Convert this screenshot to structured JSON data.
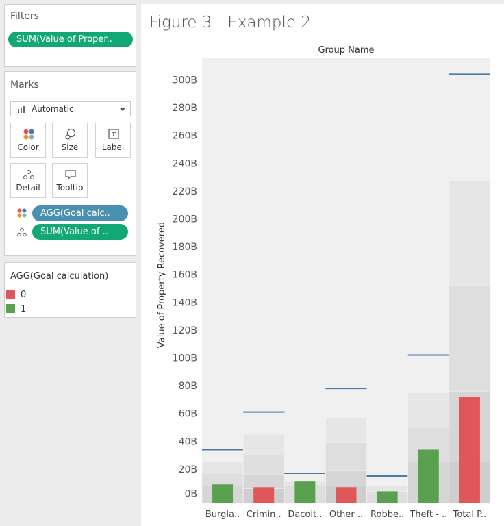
{
  "filters": {
    "title": "Filters",
    "pill": "SUM(Value of Proper.."
  },
  "marks": {
    "title": "Marks",
    "mark_type": "Automatic",
    "buttons": [
      "Color",
      "Size",
      "Label",
      "Detail",
      "Tooltip"
    ],
    "pills": [
      {
        "text": "AGG(Goal calc..",
        "icon": "color-dots-icon"
      },
      {
        "text": "SUM(Value of ..",
        "icon": "detail-dots-icon"
      }
    ]
  },
  "legend": {
    "title": "AGG(Goal calculation)",
    "items": [
      {
        "label": "0",
        "color": "#e05759"
      },
      {
        "label": "1",
        "color": "#59a14f"
      }
    ]
  },
  "chart_data": {
    "type": "bar",
    "title": "Figure 3 - Example 2",
    "column_header": "Group Name",
    "ylabel": "Value of Property Recovered",
    "ylim": [
      0,
      310
    ],
    "y_ticks": [
      "0B",
      "20B",
      "40B",
      "60B",
      "80B",
      "100B",
      "120B",
      "140B",
      "160B",
      "180B",
      "200B",
      "220B",
      "240B",
      "260B",
      "280B",
      "300B"
    ],
    "y_tick_values": [
      0,
      20,
      40,
      60,
      80,
      100,
      120,
      140,
      160,
      180,
      200,
      220,
      240,
      260,
      280,
      300
    ],
    "categories": [
      "Burgla..",
      "Crimin..",
      "Dacoit..",
      "Other ..",
      "Robbe..",
      "Theft - ..",
      "Total P.."
    ],
    "bands": [
      [
        25,
        17,
        8
      ],
      [
        45,
        30,
        16,
        6
      ],
      [
        11,
        8
      ],
      [
        57,
        39,
        19,
        8
      ],
      [
        8,
        4
      ],
      [
        75,
        50,
        25
      ],
      [
        227,
        152,
        76,
        25
      ]
    ],
    "values": [
      9,
      7,
      11,
      7,
      4,
      34,
      72
    ],
    "goal_flag": [
      1,
      0,
      1,
      0,
      1,
      1,
      0
    ],
    "goal_line": [
      34,
      61,
      17,
      78,
      15,
      102,
      304
    ],
    "colors": {
      "0": "#e05759",
      "1": "#59a14f",
      "goal": "#4e79a7",
      "pane": "#f0f0f0",
      "band": "#d9d9d9"
    }
  }
}
